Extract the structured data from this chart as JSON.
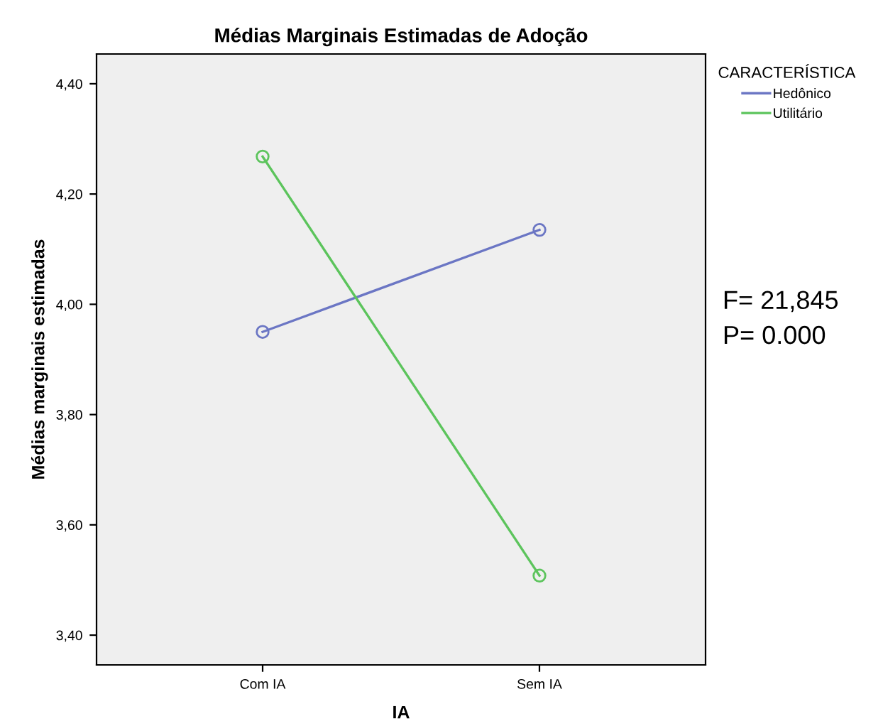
{
  "chart_data": {
    "type": "line",
    "title": "Médias Marginais Estimadas de Adoção",
    "xlabel": "IA",
    "ylabel": "Médias marginais estimadas",
    "legend_title": "CARACTERÍSTICA",
    "categories": [
      "Com IA",
      "Sem IA"
    ],
    "series": [
      {
        "name": "Hedônico",
        "color": "#6b76c4",
        "values": [
          3.95,
          4.135
        ]
      },
      {
        "name": "Utilitário",
        "color": "#5cc45c",
        "values": [
          4.268,
          3.508
        ]
      }
    ],
    "ylim": [
      3.346,
      4.454
    ],
    "yticks": [
      {
        "value": 3.4,
        "label": "3,40"
      },
      {
        "value": 3.6,
        "label": "3,60"
      },
      {
        "value": 3.8,
        "label": "3,80"
      },
      {
        "value": 4.0,
        "label": "4,00"
      },
      {
        "value": 4.2,
        "label": "4,20"
      },
      {
        "value": 4.4,
        "label": "4,40"
      }
    ],
    "marker": "circle",
    "grid": false,
    "legend": "top right",
    "annotations": [
      "F= 21,845\nP= 0.000"
    ]
  }
}
